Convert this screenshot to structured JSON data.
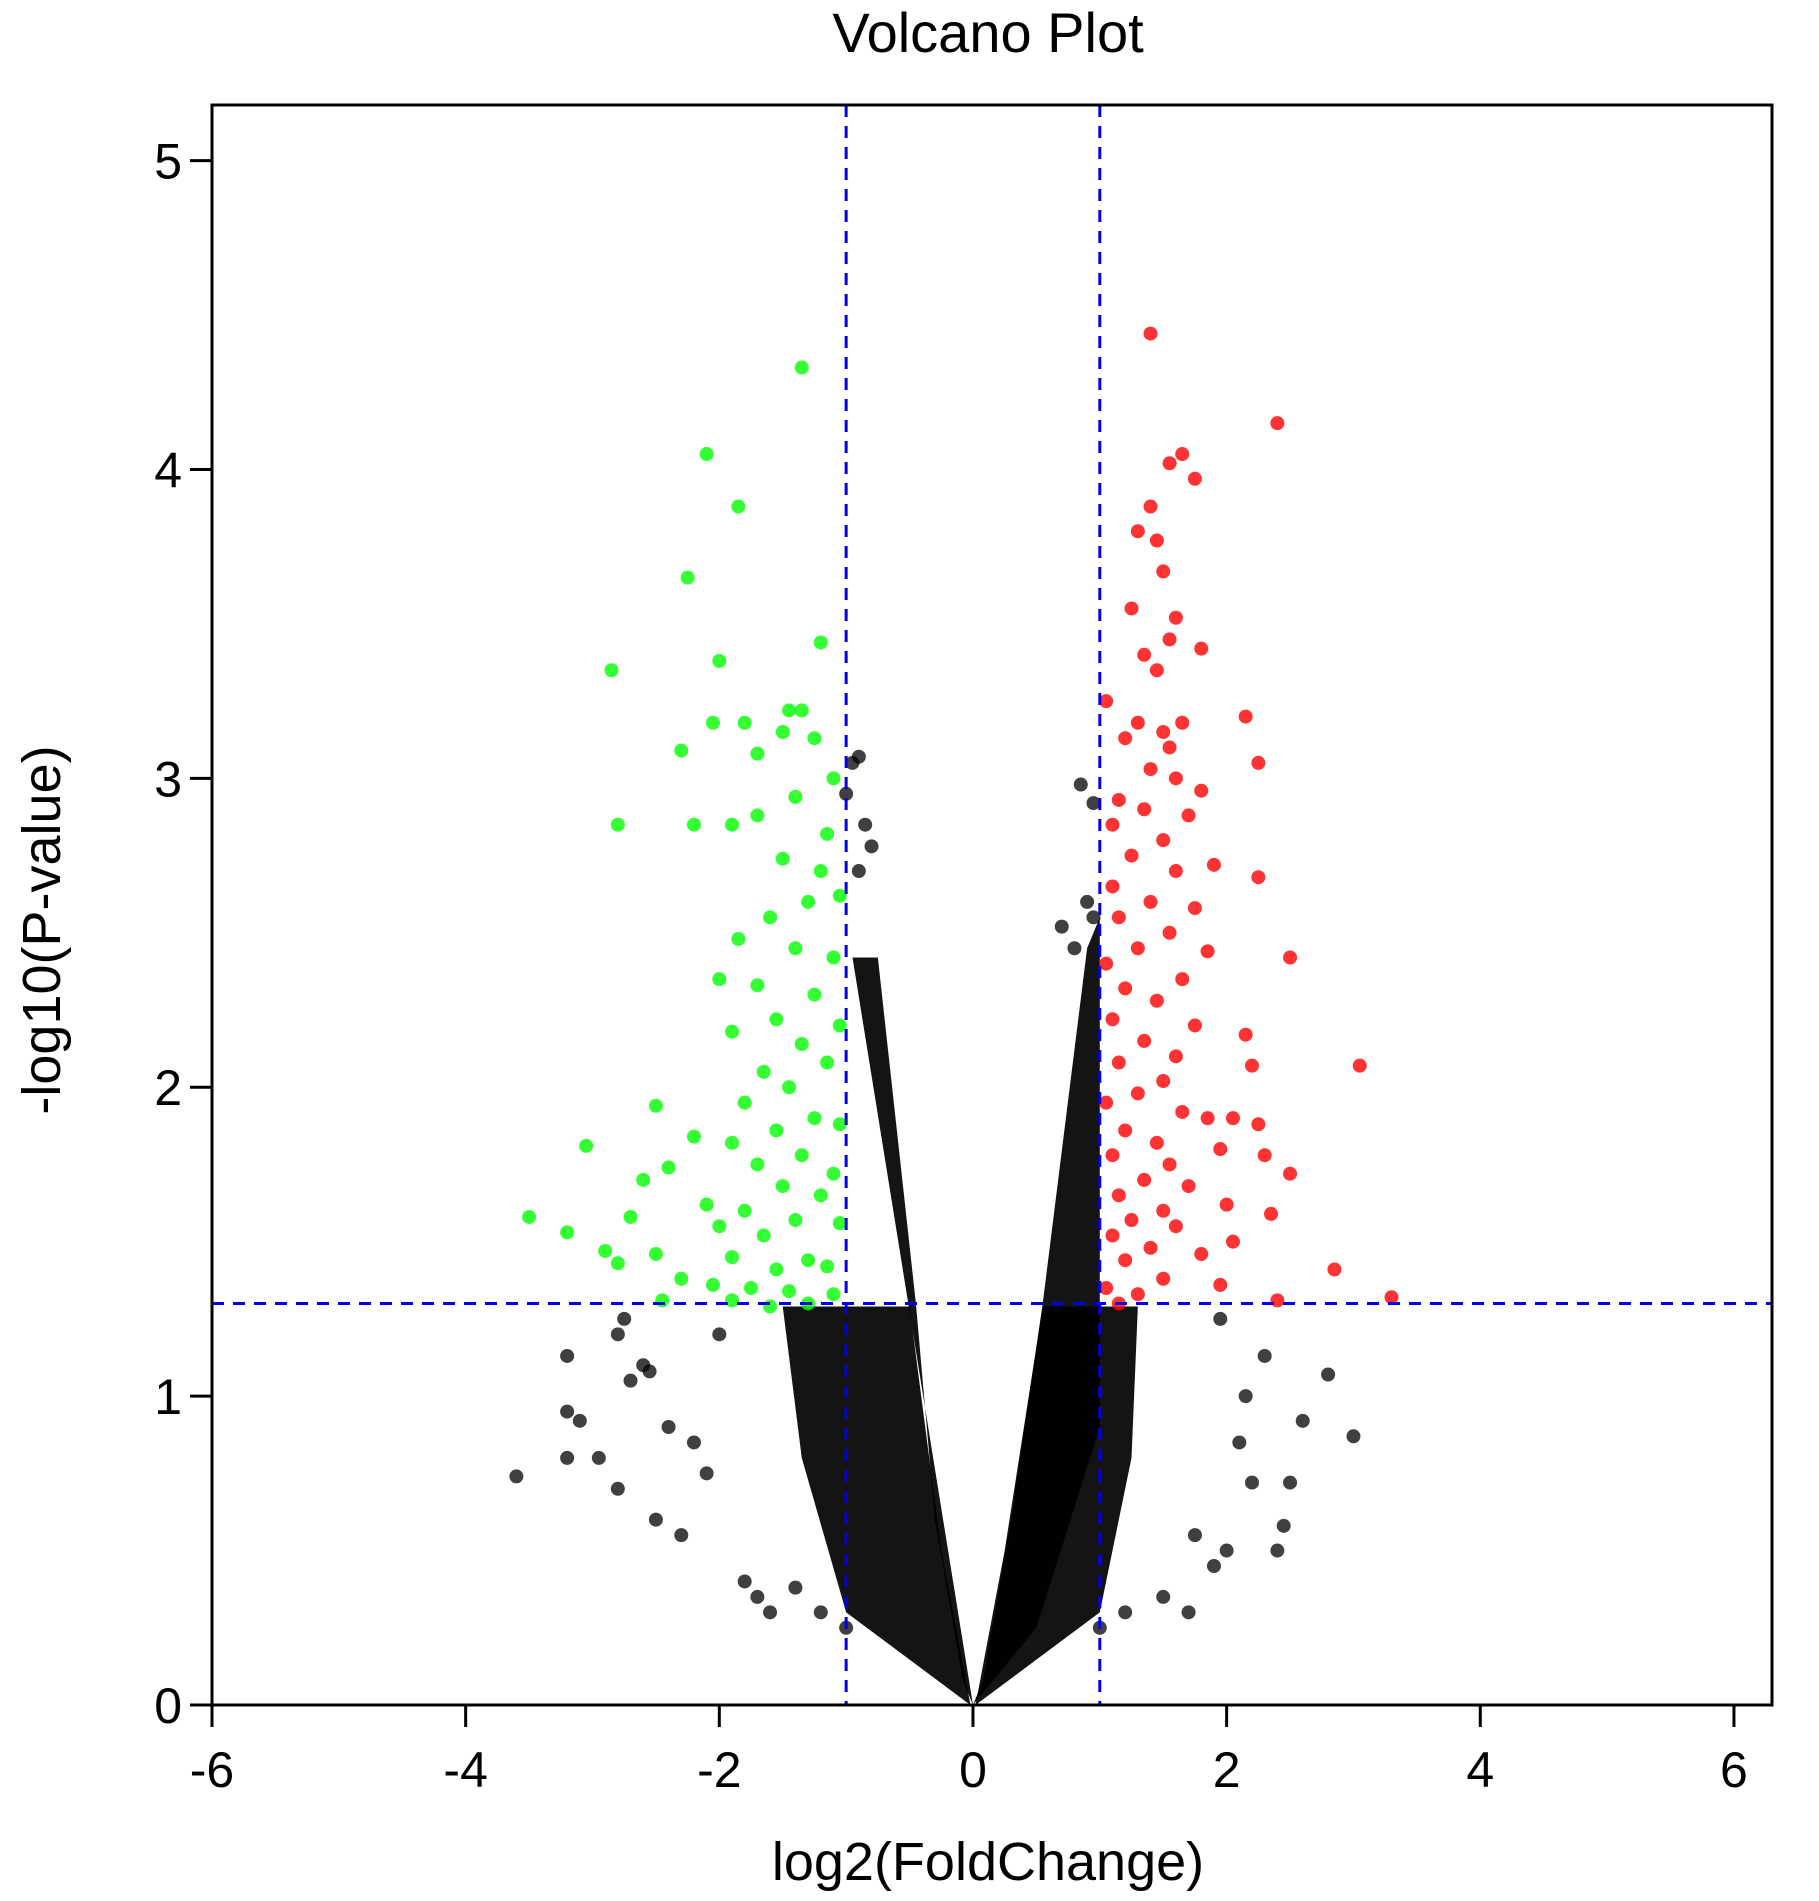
{
  "chart_data": {
    "type": "scatter",
    "title": "Volcano Plot",
    "xlabel": "log2(FoldChange)",
    "ylabel": "-log10(P-value)",
    "xlim": [
      -6,
      6.3
    ],
    "ylim": [
      0,
      5.18
    ],
    "x_ticks": [
      -6,
      -4,
      -2,
      0,
      2,
      4,
      6
    ],
    "x_tick_labels": [
      "-6",
      "-4",
      "-2",
      "0",
      "2",
      "4",
      "6"
    ],
    "y_ticks": [
      0,
      1,
      2,
      3,
      4,
      5
    ],
    "y_tick_labels": [
      "0",
      "1",
      "2",
      "3",
      "4",
      "5"
    ],
    "grid": false,
    "legend": "none",
    "thresholds": {
      "log2_fold_change": [
        -1,
        1
      ],
      "neg_log10_p": 1.3,
      "line_color": "#0000ee",
      "line_style": "dashed"
    },
    "series": [
      {
        "color": "#00ff00",
        "points": [
          [
            -1.35,
            4.33
          ],
          [
            -2.1,
            4.05
          ],
          [
            -1.85,
            3.88
          ],
          [
            -2.25,
            3.65
          ],
          [
            -1.2,
            3.44
          ],
          [
            -2.85,
            3.35
          ],
          [
            -2.0,
            3.38
          ],
          [
            -1.45,
            3.22
          ],
          [
            -1.35,
            3.22
          ],
          [
            -2.05,
            3.18
          ],
          [
            -1.8,
            3.18
          ],
          [
            -1.5,
            3.15
          ],
          [
            -1.25,
            3.13
          ],
          [
            -1.7,
            3.08
          ],
          [
            -2.3,
            3.09
          ],
          [
            -1.1,
            3.0
          ],
          [
            -1.4,
            2.94
          ],
          [
            -1.7,
            2.88
          ],
          [
            -2.8,
            2.85
          ],
          [
            -2.2,
            2.85
          ],
          [
            -1.9,
            2.85
          ],
          [
            -1.15,
            2.82
          ],
          [
            -1.5,
            2.74
          ],
          [
            -1.2,
            2.7
          ],
          [
            -1.05,
            2.62
          ],
          [
            -1.3,
            2.6
          ],
          [
            -1.6,
            2.55
          ],
          [
            -1.85,
            2.48
          ],
          [
            -1.4,
            2.45
          ],
          [
            -1.1,
            2.42
          ],
          [
            -2.0,
            2.35
          ],
          [
            -1.7,
            2.33
          ],
          [
            -1.25,
            2.3
          ],
          [
            -1.55,
            2.22
          ],
          [
            -1.05,
            2.2
          ],
          [
            -1.9,
            2.18
          ],
          [
            -1.35,
            2.14
          ],
          [
            -1.15,
            2.08
          ],
          [
            -1.65,
            2.05
          ],
          [
            -1.45,
            2.0
          ],
          [
            -1.8,
            1.95
          ],
          [
            -2.5,
            1.94
          ],
          [
            -1.25,
            1.9
          ],
          [
            -1.05,
            1.88
          ],
          [
            -1.55,
            1.86
          ],
          [
            -2.2,
            1.84
          ],
          [
            -1.9,
            1.82
          ],
          [
            -3.05,
            1.81
          ],
          [
            -1.35,
            1.78
          ],
          [
            -1.7,
            1.75
          ],
          [
            -2.4,
            1.74
          ],
          [
            -1.1,
            1.72
          ],
          [
            -2.6,
            1.7
          ],
          [
            -1.5,
            1.68
          ],
          [
            -1.2,
            1.65
          ],
          [
            -2.1,
            1.62
          ],
          [
            -1.8,
            1.6
          ],
          [
            -3.5,
            1.58
          ],
          [
            -2.7,
            1.58
          ],
          [
            -1.4,
            1.57
          ],
          [
            -1.05,
            1.56
          ],
          [
            -2.0,
            1.55
          ],
          [
            -3.2,
            1.53
          ],
          [
            -1.65,
            1.52
          ],
          [
            -2.9,
            1.47
          ],
          [
            -2.5,
            1.46
          ],
          [
            -1.9,
            1.45
          ],
          [
            -1.3,
            1.44
          ],
          [
            -2.8,
            1.43
          ],
          [
            -1.15,
            1.42
          ],
          [
            -1.55,
            1.41
          ],
          [
            -2.3,
            1.38
          ],
          [
            -2.05,
            1.36
          ],
          [
            -1.75,
            1.35
          ],
          [
            -1.45,
            1.34
          ],
          [
            -1.1,
            1.33
          ],
          [
            -2.45,
            1.31
          ],
          [
            -1.9,
            1.31
          ],
          [
            -1.3,
            1.3
          ],
          [
            -1.6,
            1.29
          ]
        ]
      },
      {
        "color": "#ff0000",
        "points": [
          [
            1.4,
            4.44
          ],
          [
            2.4,
            4.15
          ],
          [
            1.65,
            4.05
          ],
          [
            1.55,
            4.02
          ],
          [
            1.75,
            3.97
          ],
          [
            1.4,
            3.88
          ],
          [
            1.3,
            3.8
          ],
          [
            1.45,
            3.77
          ],
          [
            1.5,
            3.67
          ],
          [
            1.25,
            3.55
          ],
          [
            1.6,
            3.52
          ],
          [
            1.55,
            3.45
          ],
          [
            1.8,
            3.42
          ],
          [
            1.35,
            3.4
          ],
          [
            1.45,
            3.35
          ],
          [
            1.05,
            3.25
          ],
          [
            2.15,
            3.2
          ],
          [
            1.3,
            3.18
          ],
          [
            1.65,
            3.18
          ],
          [
            1.5,
            3.15
          ],
          [
            1.2,
            3.13
          ],
          [
            1.55,
            3.1
          ],
          [
            2.25,
            3.05
          ],
          [
            1.4,
            3.03
          ],
          [
            1.6,
            3.0
          ],
          [
            1.8,
            2.96
          ],
          [
            1.15,
            2.93
          ],
          [
            1.35,
            2.9
          ],
          [
            1.7,
            2.88
          ],
          [
            1.1,
            2.85
          ],
          [
            1.5,
            2.8
          ],
          [
            1.25,
            2.75
          ],
          [
            1.9,
            2.72
          ],
          [
            1.6,
            2.7
          ],
          [
            2.25,
            2.68
          ],
          [
            1.1,
            2.65
          ],
          [
            1.4,
            2.6
          ],
          [
            1.75,
            2.58
          ],
          [
            1.15,
            2.55
          ],
          [
            1.55,
            2.5
          ],
          [
            1.3,
            2.45
          ],
          [
            1.85,
            2.44
          ],
          [
            2.5,
            2.42
          ],
          [
            1.05,
            2.4
          ],
          [
            1.65,
            2.35
          ],
          [
            1.2,
            2.32
          ],
          [
            1.45,
            2.28
          ],
          [
            1.1,
            2.22
          ],
          [
            1.75,
            2.2
          ],
          [
            1.35,
            2.15
          ],
          [
            2.15,
            2.17
          ],
          [
            1.6,
            2.1
          ],
          [
            1.15,
            2.08
          ],
          [
            2.2,
            2.07
          ],
          [
            3.05,
            2.07
          ],
          [
            1.5,
            2.02
          ],
          [
            1.3,
            1.98
          ],
          [
            1.05,
            1.95
          ],
          [
            1.65,
            1.92
          ],
          [
            1.85,
            1.9
          ],
          [
            2.05,
            1.9
          ],
          [
            2.25,
            1.88
          ],
          [
            1.2,
            1.86
          ],
          [
            1.45,
            1.82
          ],
          [
            1.95,
            1.8
          ],
          [
            1.1,
            1.78
          ],
          [
            2.3,
            1.78
          ],
          [
            1.55,
            1.75
          ],
          [
            2.5,
            1.72
          ],
          [
            1.35,
            1.7
          ],
          [
            1.7,
            1.68
          ],
          [
            1.15,
            1.65
          ],
          [
            2.0,
            1.62
          ],
          [
            1.5,
            1.6
          ],
          [
            2.35,
            1.59
          ],
          [
            1.25,
            1.57
          ],
          [
            1.6,
            1.55
          ],
          [
            1.1,
            1.52
          ],
          [
            2.05,
            1.5
          ],
          [
            1.4,
            1.48
          ],
          [
            1.8,
            1.46
          ],
          [
            1.2,
            1.44
          ],
          [
            2.85,
            1.41
          ],
          [
            1.5,
            1.38
          ],
          [
            1.95,
            1.36
          ],
          [
            1.05,
            1.35
          ],
          [
            1.3,
            1.33
          ],
          [
            3.3,
            1.32
          ],
          [
            2.4,
            1.31
          ],
          [
            1.15,
            1.3
          ]
        ]
      },
      {
        "color": "#000000",
        "points": [
          [
            -0.9,
            3.07
          ],
          [
            -0.95,
            3.05
          ],
          [
            -1.0,
            2.95
          ],
          [
            -0.85,
            2.85
          ],
          [
            -0.8,
            2.78
          ],
          [
            -0.9,
            2.7
          ],
          [
            0.85,
            2.98
          ],
          [
            0.95,
            2.92
          ],
          [
            0.9,
            2.6
          ],
          [
            0.95,
            2.55
          ],
          [
            0.7,
            2.52
          ],
          [
            0.8,
            2.45
          ],
          [
            -3.6,
            0.74
          ],
          [
            -3.2,
            0.95
          ],
          [
            -3.1,
            0.92
          ],
          [
            -3.2,
            0.8
          ],
          [
            -2.95,
            0.8
          ],
          [
            -3.2,
            1.13
          ],
          [
            -2.75,
            1.25
          ],
          [
            -2.8,
            1.2
          ],
          [
            -2.6,
            1.1
          ],
          [
            -2.8,
            0.7
          ],
          [
            -2.7,
            1.05
          ],
          [
            -2.55,
            1.08
          ],
          [
            -2.4,
            0.9
          ],
          [
            -2.5,
            0.6
          ],
          [
            -2.3,
            0.55
          ],
          [
            -2.2,
            0.85
          ],
          [
            -2.1,
            0.75
          ],
          [
            -2.0,
            1.2
          ],
          [
            -1.8,
            0.4
          ],
          [
            -1.7,
            0.35
          ],
          [
            -1.6,
            0.3
          ],
          [
            -1.4,
            0.38
          ],
          [
            -1.2,
            0.3
          ],
          [
            -1.0,
            0.25
          ],
          [
            2.8,
            1.07
          ],
          [
            3.0,
            0.87
          ],
          [
            2.5,
            0.72
          ],
          [
            2.45,
            0.58
          ],
          [
            2.4,
            0.5
          ],
          [
            2.2,
            0.72
          ],
          [
            2.0,
            0.5
          ],
          [
            1.9,
            0.45
          ],
          [
            1.75,
            0.55
          ],
          [
            2.15,
            1.0
          ],
          [
            2.3,
            1.13
          ],
          [
            1.95,
            1.25
          ],
          [
            1.7,
            0.3
          ],
          [
            1.5,
            0.35
          ],
          [
            1.2,
            0.3
          ],
          [
            1.0,
            0.25
          ],
          [
            2.6,
            0.92
          ],
          [
            2.1,
            0.85
          ]
        ]
      }
    ]
  }
}
